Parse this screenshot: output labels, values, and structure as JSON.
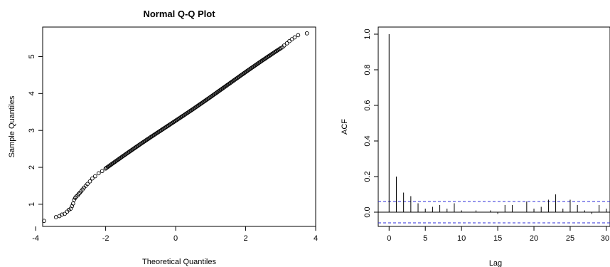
{
  "chart_data": [
    {
      "type": "scatter",
      "title": "Normal Q-Q Plot",
      "xlabel": "Theoretical Quantiles",
      "ylabel": "Sample Quantiles",
      "xlim": [
        -3.8,
        4.0
      ],
      "ylim": [
        0.4,
        5.8
      ],
      "xticks": [
        -4,
        -2,
        0,
        2,
        4
      ],
      "yticks": [
        1,
        2,
        3,
        4,
        5
      ],
      "marker": "open-circle",
      "color": "#000000",
      "points": [
        [
          -3.76,
          0.55
        ],
        [
          -3.42,
          0.65
        ],
        [
          -3.32,
          0.68
        ],
        [
          -3.25,
          0.72
        ],
        [
          -3.17,
          0.74
        ],
        [
          -3.1,
          0.8
        ],
        [
          -3.05,
          0.85
        ],
        [
          -3.0,
          0.88
        ],
        [
          -2.96,
          0.95
        ],
        [
          -2.93,
          1.02
        ],
        [
          -2.9,
          1.12
        ],
        [
          -2.87,
          1.17
        ],
        [
          -2.84,
          1.21
        ],
        [
          -2.8,
          1.24
        ],
        [
          -2.77,
          1.28
        ],
        [
          -2.74,
          1.31
        ],
        [
          -2.7,
          1.35
        ],
        [
          -2.66,
          1.4
        ],
        [
          -2.62,
          1.45
        ],
        [
          -2.57,
          1.5
        ],
        [
          -2.52,
          1.55
        ],
        [
          -2.45,
          1.62
        ],
        [
          -2.38,
          1.7
        ],
        [
          -2.3,
          1.76
        ],
        [
          -2.2,
          1.84
        ],
        [
          -2.1,
          1.9
        ],
        [
          -2.0,
          1.97
        ],
        [
          3.05,
          5.25
        ],
        [
          3.1,
          5.3
        ],
        [
          3.18,
          5.36
        ],
        [
          3.25,
          5.42
        ],
        [
          3.32,
          5.47
        ],
        [
          3.4,
          5.52
        ],
        [
          3.5,
          5.58
        ],
        [
          3.75,
          5.63
        ]
      ],
      "band": {
        "x": [
          -2.0,
          3.0
        ],
        "y": [
          1.97,
          5.22
        ]
      }
    },
    {
      "type": "bar",
      "subtype": "acf",
      "xlabel": "Lag",
      "ylabel": "ACF",
      "xlim": [
        -1.5,
        30.5
      ],
      "ylim": [
        -0.08,
        1.04
      ],
      "xticks": [
        0,
        5,
        10,
        15,
        20,
        25,
        30
      ],
      "yticks": [
        0.0,
        0.2,
        0.4,
        0.6,
        0.8,
        1.0
      ],
      "lags": [
        0,
        1,
        2,
        3,
        4,
        5,
        6,
        7,
        8,
        9,
        10,
        11,
        12,
        13,
        14,
        15,
        16,
        17,
        18,
        19,
        20,
        21,
        22,
        23,
        24,
        25,
        26,
        27,
        28,
        29,
        30
      ],
      "values": [
        1.0,
        0.2,
        0.11,
        0.09,
        0.05,
        0.02,
        0.03,
        0.04,
        0.02,
        0.05,
        0.01,
        0.0,
        0.01,
        0.0,
        0.01,
        -0.01,
        0.04,
        0.04,
        0.0,
        0.06,
        0.02,
        0.03,
        0.07,
        0.1,
        0.02,
        0.07,
        0.04,
        0.01,
        -0.01,
        0.04,
        0.02
      ],
      "confidence_bound": 0.06,
      "bound_color": "#2b2bd9"
    }
  ]
}
